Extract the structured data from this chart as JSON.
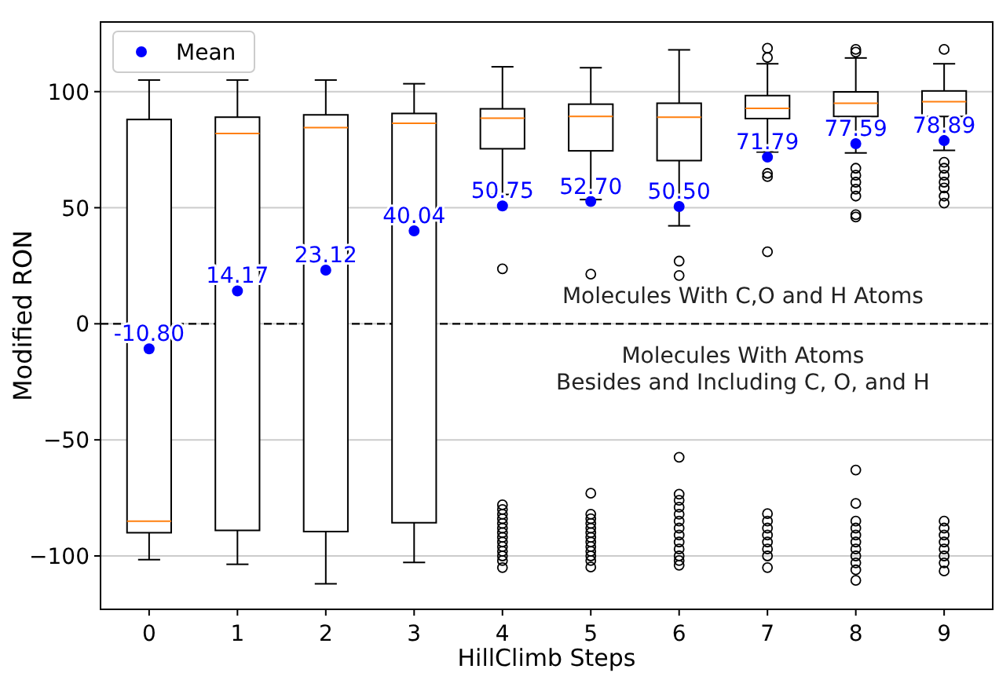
{
  "chart_data": {
    "type": "box",
    "xlabel": "HillClimb Steps",
    "ylabel": "Modified RON",
    "categories": [
      "0",
      "1",
      "2",
      "3",
      "4",
      "5",
      "6",
      "7",
      "8",
      "9"
    ],
    "ylim": [
      -123,
      130
    ],
    "yticks": [
      {
        "value": -100,
        "label": "−100"
      },
      {
        "value": -50,
        "label": "−50"
      },
      0,
      50,
      100
    ],
    "grid": "y",
    "legend": "top left",
    "ref_lines": [
      {
        "axis": "y",
        "value": 0,
        "line_style": "dashed",
        "color": "#000000"
      }
    ],
    "annotations": [
      "Molecules With C,O and H Atoms",
      "Molecules With Atoms\nBesides and Including C, O, and H"
    ],
    "series": [
      {
        "boxes": [
          {
            "low": -101.6,
            "q1": -90,
            "median": -85,
            "q3": 88,
            "high": 105
          },
          {
            "low": -103.6,
            "q1": -89,
            "median": 82,
            "q3": 89,
            "high": 105
          },
          {
            "low": -112,
            "q1": -89.5,
            "median": 84.5,
            "q3": 90,
            "high": 105
          },
          {
            "low": -102.8,
            "q1": -85.7,
            "median": 86.4,
            "q3": 90.6,
            "high": 103.4
          },
          {
            "low": 55.7,
            "q1": 75.4,
            "median": 88.6,
            "q3": 92.6,
            "high": 110.7,
            "outliers": [
              23.7,
              -78,
              -80,
              -82,
              -84,
              -86,
              -88,
              -90,
              -92,
              -94,
              -96,
              -98,
              -100,
              -102,
              -105
            ]
          },
          {
            "low": 53.5,
            "q1": 74.5,
            "median": 89.3,
            "q3": 94.6,
            "high": 110.3,
            "outliers": [
              21.4,
              -73,
              -82,
              -84,
              -86,
              -88,
              -90,
              -92,
              -94,
              -96,
              -98,
              -100,
              -102,
              -104.8
            ]
          },
          {
            "low": 42.2,
            "q1": 70.3,
            "median": 89,
            "q3": 95,
            "high": 118,
            "outliers": [
              27,
              20.8,
              -57.5,
              -73.4,
              -76,
              -79,
              -82,
              -85,
              -88,
              -91,
              -94,
              -97,
              -100,
              -102,
              -104
            ]
          },
          {
            "low": 74,
            "q1": 88.4,
            "median": 92.8,
            "q3": 98.3,
            "high": 112,
            "outliers": [
              118.7,
              114.7,
              64.8,
              63.4,
              31,
              -81.8,
              -85,
              -88,
              -91,
              -94,
              -97,
              -100,
              -105
            ]
          },
          {
            "low": 73.6,
            "q1": 89.3,
            "median": 95,
            "q3": 99.9,
            "high": 114.5,
            "outliers": [
              118.2,
              117,
              67,
              64,
              61,
              58,
              55,
              47,
              46,
              -63,
              -77.4,
              -85,
              -88,
              -91,
              -94,
              -97,
              -100,
              -103,
              -106,
              -110.5
            ]
          },
          {
            "low": 74.7,
            "q1": 89.3,
            "median": 95.7,
            "q3": 100.3,
            "high": 112,
            "outliers": [
              118.2,
              69.6,
              67,
              64,
              61,
              58.5,
              55,
              52,
              -85,
              -88,
              -91,
              -94,
              -97,
              -100,
              -103,
              -106.5
            ]
          }
        ]
      },
      {
        "type": "scatter",
        "name": "Mean",
        "color": "#0000ff",
        "marker": "circle",
        "x": [
          "0",
          "1",
          "2",
          "3",
          "4",
          "5",
          "6",
          "7",
          "8",
          "9"
        ],
        "values": [
          -10.8,
          14.17,
          23.12,
          40.04,
          50.75,
          52.7,
          50.5,
          71.79,
          77.59,
          78.89
        ],
        "value_labels": [
          "-10.80",
          "14.17",
          "23.12",
          "40.04",
          "50.75",
          "52.70",
          "50.50",
          "71.79",
          "77.59",
          "78.89"
        ]
      }
    ]
  }
}
